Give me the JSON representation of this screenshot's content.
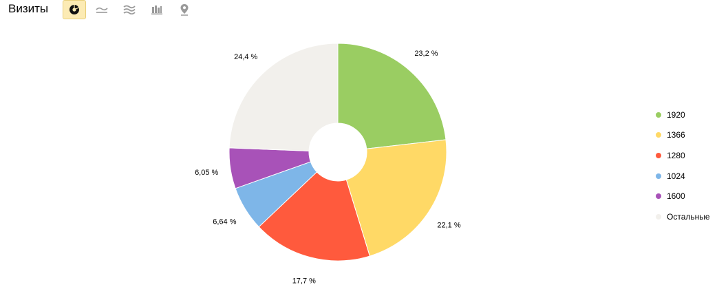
{
  "header": {
    "title": "Визиты",
    "tools": [
      {
        "icon": "pie-chart-icon",
        "active": true
      },
      {
        "icon": "line-chart-icon",
        "active": false
      },
      {
        "icon": "area-chart-icon",
        "active": false
      },
      {
        "icon": "bar-chart-icon",
        "active": false
      },
      {
        "icon": "map-pin-icon",
        "active": false
      }
    ]
  },
  "chart_data": {
    "type": "pie",
    "donut": true,
    "labels": [
      "1920",
      "1366",
      "1280",
      "1024",
      "1600",
      "Остальные"
    ],
    "values": [
      23.2,
      22.1,
      17.7,
      6.64,
      6.05,
      24.4
    ],
    "value_labels": [
      "23,2 %",
      "22,1 %",
      "17,7 %",
      "6,64 %",
      "6,05 %",
      "24,4 %"
    ],
    "colors": [
      "#9acd62",
      "#ffd966",
      "#ff5a3d",
      "#7eb6e8",
      "#a852b8",
      "#f2f0ec"
    ],
    "legend_position": "right"
  }
}
